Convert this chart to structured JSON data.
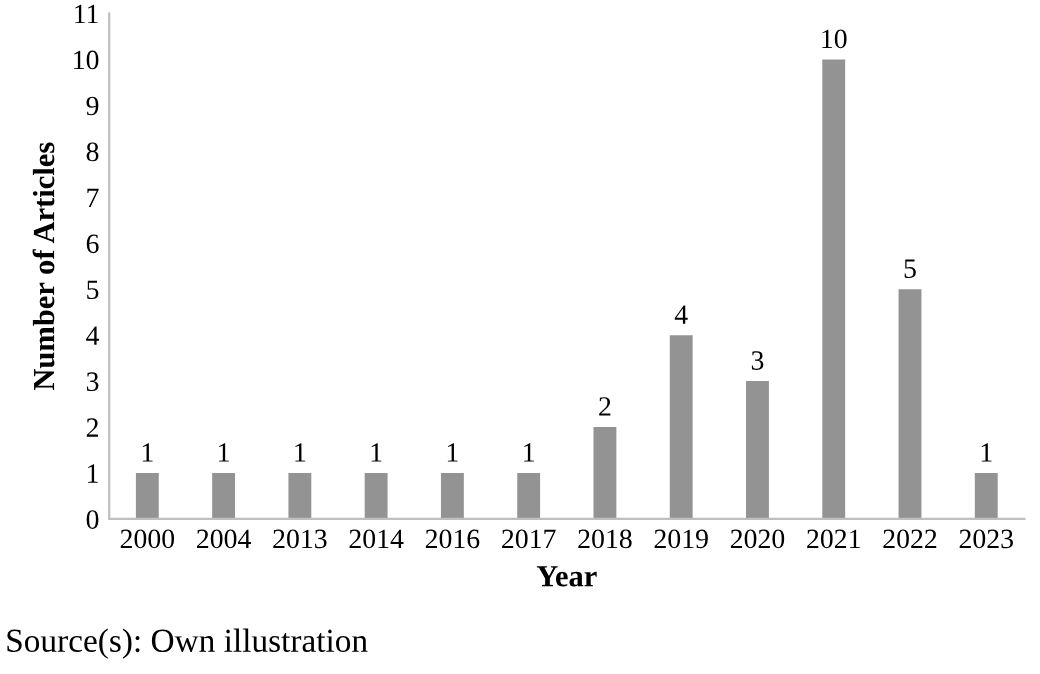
{
  "chart_data": {
    "type": "bar",
    "xlabel": "Year",
    "ylabel": "Number of Articles",
    "categories": [
      "2000",
      "2004",
      "2013",
      "2014",
      "2016",
      "2017",
      "2018",
      "2019",
      "2020",
      "2021",
      "2022",
      "2023"
    ],
    "values": [
      1,
      1,
      1,
      1,
      1,
      1,
      2,
      4,
      3,
      10,
      5,
      1
    ],
    "color": "#939393",
    "ylim": [
      0,
      11
    ],
    "yticks": [
      0,
      1,
      2,
      3,
      4,
      5,
      6,
      7,
      8,
      9,
      10,
      11
    ],
    "data_labels": true,
    "annotations": [
      "Source(s): Own illustration"
    ]
  }
}
